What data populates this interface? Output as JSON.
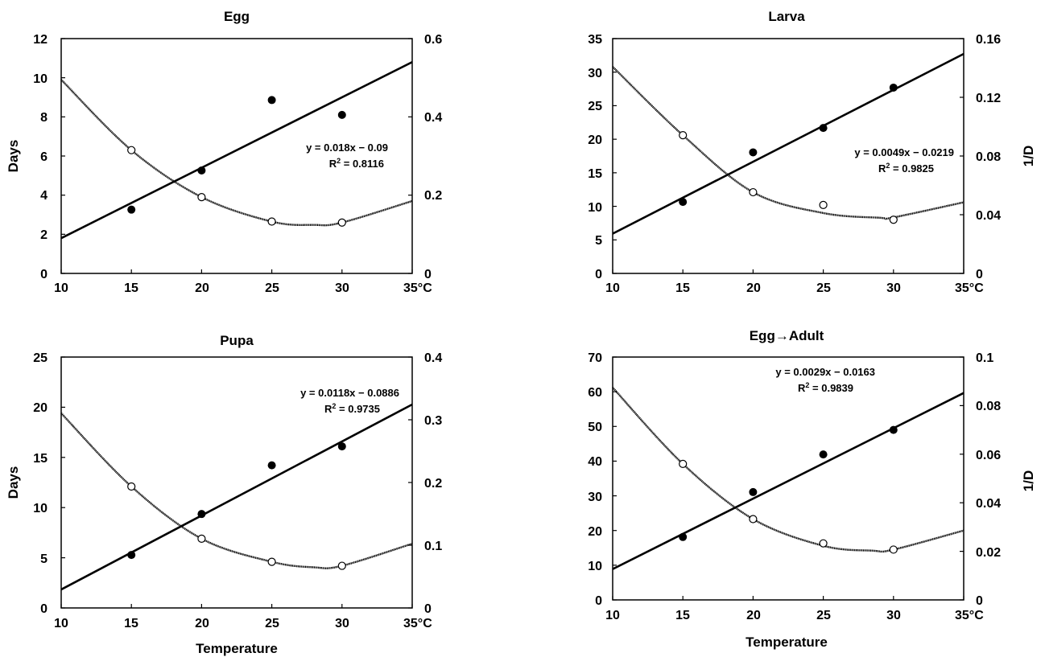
{
  "chart_data": [
    {
      "type": "scatter",
      "title": "Egg",
      "xlabel": "",
      "ylabel": "Days",
      "y2label": "",
      "xlim": [
        10,
        35
      ],
      "ylim": [
        0,
        12
      ],
      "y2lim": [
        0,
        0.6
      ],
      "x_ticks": [
        "10",
        "15",
        "20",
        "25",
        "30",
        "35°C"
      ],
      "y_ticks": [
        "0",
        "2",
        "4",
        "6",
        "8",
        "10",
        "12"
      ],
      "y2_ticks": [
        "0",
        "0.2",
        "0.4",
        "0.6"
      ],
      "days_points": {
        "x": [
          15,
          20,
          25,
          30
        ],
        "y": [
          6.3,
          3.9,
          2.65,
          2.6
        ]
      },
      "rate_points": {
        "x": [
          15,
          20,
          25,
          30
        ],
        "y": [
          0.163,
          0.263,
          0.443,
          0.405
        ]
      },
      "regression": {
        "slope": 0.018,
        "intercept": -0.09
      },
      "curve": {
        "x": [
          10,
          15,
          20,
          25,
          28,
          30,
          35
        ],
        "y": [
          9.9,
          6.3,
          3.9,
          2.65,
          2.48,
          2.6,
          3.7
        ]
      },
      "equation": "y = 0.018x − 0.09",
      "r2": "R",
      "r2_sup": "2",
      "r2_value": " = 0.8116",
      "grid": false,
      "legend": "none"
    },
    {
      "type": "scatter",
      "title": "Larva",
      "xlabel": "",
      "ylabel": "",
      "y2label": "1/D",
      "xlim": [
        10,
        35
      ],
      "ylim": [
        0,
        35
      ],
      "y2lim": [
        0,
        0.16
      ],
      "x_ticks": [
        "10",
        "15",
        "20",
        "25",
        "30",
        "35°C"
      ],
      "y_ticks": [
        "0",
        "5",
        "10",
        "15",
        "20",
        "25",
        "30",
        "35"
      ],
      "y2_ticks": [
        "0",
        "0.04",
        "0.08",
        "0.12",
        "0.16"
      ],
      "days_points": {
        "x": [
          15,
          20,
          25,
          30
        ],
        "y": [
          20.6,
          12.1,
          10.2,
          8.0
        ]
      },
      "rate_points": {
        "x": [
          15,
          20,
          25,
          30
        ],
        "y": [
          0.0487,
          0.0825,
          0.0991,
          0.1266
        ]
      },
      "regression": {
        "slope": 0.0049,
        "intercept": -0.0219
      },
      "curve": {
        "x": [
          10,
          15,
          20,
          25,
          29,
          30,
          35
        ],
        "y": [
          30.8,
          20.6,
          12.1,
          9.0,
          8.3,
          8.35,
          10.6
        ]
      },
      "equation": "y = 0.0049x − 0.0219",
      "r2": "R",
      "r2_sup": "2",
      "r2_value": " = 0.9825",
      "grid": false,
      "legend": "none"
    },
    {
      "type": "scatter",
      "title": "Pupa",
      "xlabel": "Temperature",
      "ylabel": "Days",
      "y2label": "",
      "xlim": [
        10,
        35
      ],
      "ylim": [
        0,
        25
      ],
      "y2lim": [
        0,
        0.4
      ],
      "x_ticks": [
        "10",
        "15",
        "20",
        "25",
        "30",
        "35°C"
      ],
      "y_ticks": [
        "0",
        "5",
        "10",
        "15",
        "20",
        "25"
      ],
      "y2_ticks": [
        "0",
        "0.1",
        "0.2",
        "0.3",
        "0.4"
      ],
      "days_points": {
        "x": [
          15,
          20,
          25,
          30
        ],
        "y": [
          12.1,
          6.9,
          4.6,
          4.2
        ]
      },
      "rate_points": {
        "x": [
          15,
          20,
          25,
          30
        ],
        "y": [
          0.0845,
          0.1498,
          0.2274,
          0.2576
        ]
      },
      "regression": {
        "slope": 0.0118,
        "intercept": -0.0886
      },
      "curve": {
        "x": [
          10,
          15,
          20,
          25,
          28,
          30,
          35
        ],
        "y": [
          19.4,
          12.1,
          6.9,
          4.6,
          4.05,
          4.2,
          6.4
        ]
      },
      "equation": "y = 0.0118x − 0.0886",
      "r2": "R",
      "r2_sup": "2",
      "r2_value": " = 0.9735",
      "grid": false,
      "legend": "none"
    },
    {
      "type": "scatter",
      "title": "Egg→Adult",
      "xlabel": "Temperature",
      "ylabel": "",
      "y2label": "1/D",
      "xlim": [
        10,
        35
      ],
      "ylim": [
        0,
        70
      ],
      "y2lim": [
        0,
        0.1
      ],
      "x_ticks": [
        "10",
        "15",
        "20",
        "25",
        "30",
        "35°C"
      ],
      "y_ticks": [
        "0",
        "10",
        "20",
        "30",
        "40",
        "50",
        "60",
        "70"
      ],
      "y2_ticks": [
        "0",
        "0.02",
        "0.04",
        "0.06",
        "0.08",
        "0.1"
      ],
      "days_points": {
        "x": [
          15,
          20,
          25,
          30
        ],
        "y": [
          39.2,
          23.3,
          16.3,
          14.5
        ]
      },
      "rate_points": {
        "x": [
          15,
          20,
          25,
          30
        ],
        "y": [
          0.0259,
          0.0444,
          0.0599,
          0.07
        ]
      },
      "regression": {
        "slope": 0.0029,
        "intercept": -0.0163
      },
      "curve": {
        "x": [
          10,
          15,
          20,
          25,
          28.5,
          30,
          35
        ],
        "y": [
          61.2,
          39.2,
          23.3,
          15.6,
          14.2,
          14.5,
          20.0
        ]
      },
      "equation": "y = 0.0029x − 0.0163",
      "r2": "R",
      "r2_sup": "2",
      "r2_value": " = 0.9839",
      "grid": false,
      "legend": "none"
    }
  ]
}
